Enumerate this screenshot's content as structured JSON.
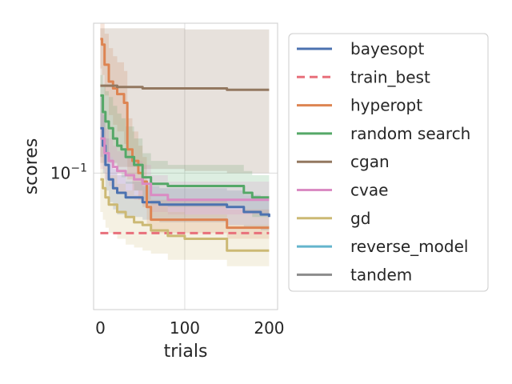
{
  "chart_data": {
    "type": "line",
    "xlabel": "trials",
    "ylabel": "scores",
    "y_scale": "log",
    "xlim": [
      -8,
      210
    ],
    "ylim": [
      0.052,
      0.205
    ],
    "x_ticks": [
      0,
      100,
      200
    ],
    "x_tick_labels": [
      "0",
      "100",
      "200"
    ],
    "y_ticks": [
      0.1
    ],
    "y_tick_labels": [
      "10−1"
    ],
    "grid": true,
    "legend_position": "right, outside plot",
    "series": [
      {
        "name": "bayesopt",
        "color": "#4c72b0",
        "style": "solid",
        "x": [
          0,
          3,
          6,
          10,
          15,
          20,
          30,
          50,
          70,
          100,
          130,
          150,
          170,
          190,
          200
        ],
        "y": [
          0.124,
          0.114,
          0.104,
          0.097,
          0.093,
          0.091,
          0.089,
          0.087,
          0.086,
          0.086,
          0.086,
          0.085,
          0.083,
          0.082,
          0.081
        ],
        "band_low": [
          0.108,
          0.1,
          0.092,
          0.087,
          0.084,
          0.082,
          0.081,
          0.08,
          0.079,
          0.079,
          0.079,
          0.078,
          0.077,
          0.076,
          0.075
        ],
        "band_high": [
          0.145,
          0.132,
          0.118,
          0.108,
          0.102,
          0.099,
          0.096,
          0.094,
          0.093,
          0.093,
          0.093,
          0.092,
          0.09,
          0.089,
          0.088
        ]
      },
      {
        "name": "train_best",
        "color": "#e8707b",
        "style": "dashed",
        "x": [
          0,
          200
        ],
        "y": [
          0.075,
          0.075
        ]
      },
      {
        "name": "hyperopt",
        "color": "#dd8452",
        "style": "solid",
        "x": [
          0,
          2,
          5,
          10,
          15,
          20,
          28,
          32,
          38,
          45,
          50,
          55,
          60,
          80,
          100,
          120,
          150,
          170,
          200
        ],
        "y": [
          0.19,
          0.185,
          0.168,
          0.155,
          0.15,
          0.146,
          0.14,
          0.112,
          0.106,
          0.1,
          0.096,
          0.085,
          0.08,
          0.08,
          0.08,
          0.08,
          0.077,
          0.077,
          0.077
        ],
        "band_low": [
          0.165,
          0.16,
          0.145,
          0.132,
          0.126,
          0.122,
          0.115,
          0.097,
          0.092,
          0.088,
          0.085,
          0.078,
          0.075,
          0.075,
          0.075,
          0.075,
          0.073,
          0.073,
          0.073
        ],
        "band_high": [
          0.205,
          0.205,
          0.195,
          0.182,
          0.175,
          0.17,
          0.163,
          0.13,
          0.122,
          0.114,
          0.108,
          0.095,
          0.088,
          0.088,
          0.088,
          0.088,
          0.084,
          0.084,
          0.084
        ]
      },
      {
        "name": "random search",
        "color": "#55a868",
        "style": "solid",
        "x": [
          0,
          3,
          6,
          10,
          15,
          20,
          25,
          30,
          40,
          50,
          60,
          80,
          100,
          120,
          140,
          160,
          170,
          180,
          200
        ],
        "y": [
          0.145,
          0.134,
          0.128,
          0.124,
          0.118,
          0.114,
          0.112,
          0.108,
          0.104,
          0.098,
          0.095,
          0.094,
          0.094,
          0.094,
          0.094,
          0.094,
          0.091,
          0.089,
          0.089
        ],
        "band_low": [
          0.125,
          0.115,
          0.11,
          0.108,
          0.104,
          0.1,
          0.098,
          0.095,
          0.092,
          0.088,
          0.086,
          0.085,
          0.085,
          0.085,
          0.085,
          0.085,
          0.083,
          0.081,
          0.081
        ],
        "band_high": [
          0.16,
          0.153,
          0.148,
          0.144,
          0.138,
          0.133,
          0.13,
          0.125,
          0.118,
          0.11,
          0.106,
          0.104,
          0.104,
          0.104,
          0.104,
          0.104,
          0.101,
          0.099,
          0.099
        ]
      },
      {
        "name": "cgan",
        "color": "#937860",
        "style": "solid",
        "x": [
          0,
          20,
          50,
          100,
          150,
          200
        ],
        "y": [
          0.152,
          0.151,
          0.15,
          0.15,
          0.149,
          0.149
        ],
        "band_low": [
          0.105,
          0.103,
          0.102,
          0.101,
          0.1,
          0.1
        ],
        "band_high": [
          0.2,
          0.2,
          0.2,
          0.199,
          0.199,
          0.199
        ]
      },
      {
        "name": "cvae",
        "color": "#da8bc3",
        "style": "solid",
        "x": [
          0,
          5,
          10,
          15,
          20,
          30,
          40,
          50,
          60,
          80,
          100,
          120,
          150,
          200
        ],
        "y": [
          0.118,
          0.11,
          0.106,
          0.103,
          0.101,
          0.099,
          0.097,
          0.095,
          0.09,
          0.088,
          0.088,
          0.088,
          0.088,
          0.088
        ],
        "band_low": [
          0.102,
          0.097,
          0.094,
          0.092,
          0.091,
          0.089,
          0.088,
          0.086,
          0.083,
          0.082,
          0.082,
          0.082,
          0.082,
          0.082
        ],
        "band_high": [
          0.133,
          0.124,
          0.118,
          0.114,
          0.111,
          0.108,
          0.106,
          0.104,
          0.099,
          0.096,
          0.096,
          0.096,
          0.096,
          0.096
        ]
      },
      {
        "name": "gd",
        "color": "#ccb974",
        "style": "solid",
        "x": [
          0,
          3,
          6,
          10,
          20,
          30,
          40,
          50,
          60,
          80,
          100,
          120,
          140,
          150,
          200
        ],
        "y": [
          0.097,
          0.093,
          0.089,
          0.086,
          0.083,
          0.081,
          0.079,
          0.078,
          0.076,
          0.074,
          0.073,
          0.073,
          0.073,
          0.069,
          0.069
        ],
        "band_low": [
          0.083,
          0.08,
          0.077,
          0.075,
          0.073,
          0.071,
          0.07,
          0.069,
          0.068,
          0.066,
          0.066,
          0.066,
          0.066,
          0.064,
          0.064
        ],
        "band_high": [
          0.113,
          0.109,
          0.104,
          0.099,
          0.095,
          0.092,
          0.09,
          0.088,
          0.086,
          0.083,
          0.082,
          0.082,
          0.082,
          0.078,
          0.078
        ]
      },
      {
        "name": "reverse_model",
        "color": "#64b5cd",
        "style": "solid",
        "x": [],
        "y": []
      },
      {
        "name": "tandem",
        "color": "#8c8c8c",
        "style": "solid",
        "x": [],
        "y": []
      }
    ]
  }
}
